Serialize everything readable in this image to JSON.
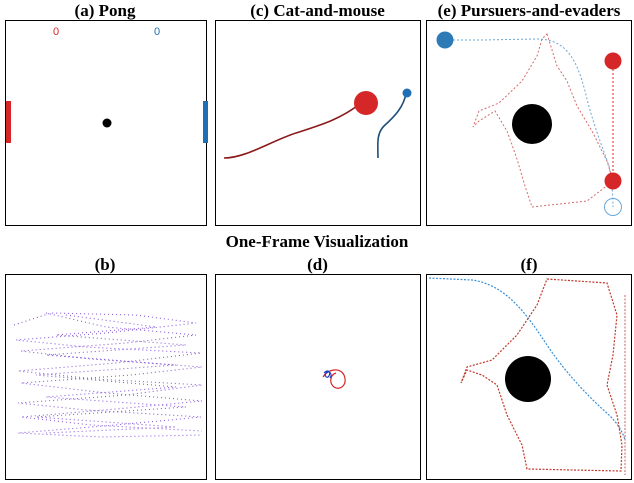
{
  "titles": {
    "a": "(a) Pong",
    "c": "(c) Cat-and-mouse",
    "e": "(e) Pursuers-and-evaders",
    "middle": "One-Frame Visualization",
    "b": "(b)",
    "d": "(d)",
    "f": "(f)"
  },
  "pong": {
    "score_left": "0",
    "score_right": "0"
  },
  "colors": {
    "red": "#d62728",
    "blue": "#1f6fb4",
    "dark_red": "#8b1a1a",
    "purple": "#8a5cd6"
  }
}
